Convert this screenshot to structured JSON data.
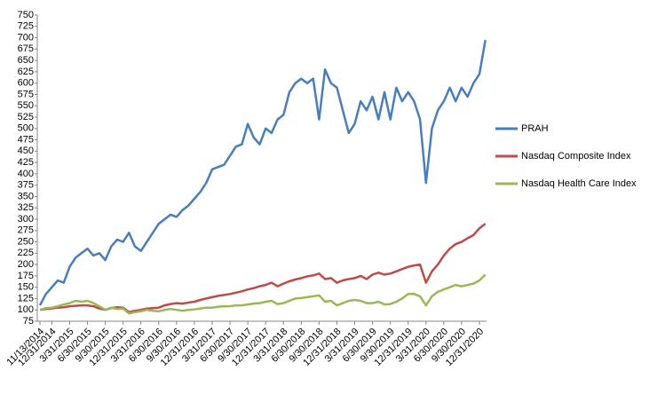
{
  "chart_data": {
    "type": "line",
    "categories": [
      "11/13/2014",
      null,
      "12/31/2014",
      null,
      null,
      "3/31/2015",
      null,
      null,
      "6/30/2015",
      null,
      null,
      "9/30/2015",
      null,
      null,
      "12/31/2015",
      null,
      null,
      "3/31/2016",
      null,
      null,
      "6/30/2016",
      null,
      null,
      "9/30/2016",
      null,
      null,
      "12/31/2016",
      null,
      null,
      "3/31/2017",
      null,
      null,
      "6/30/2017",
      null,
      null,
      "9/30/2017",
      null,
      null,
      "12/31/2017",
      null,
      null,
      "3/31/2018",
      null,
      null,
      "6/30/2018",
      null,
      null,
      "9/30/2018",
      null,
      null,
      "12/31/2018",
      null,
      null,
      "3/31/2019",
      null,
      null,
      "6/30/2019",
      null,
      null,
      "9/30/2019",
      null,
      null,
      "12/31/2019",
      null,
      null,
      "3/31/2020",
      null,
      null,
      "6/30/2020",
      null,
      null,
      "9/30/2020",
      null,
      null,
      "12/31/2020",
      null
    ],
    "series": [
      {
        "name": "PRAH",
        "color": "#4a7ebb",
        "values": [
          110,
          135,
          150,
          165,
          160,
          195,
          215,
          225,
          235,
          220,
          225,
          210,
          240,
          255,
          250,
          270,
          240,
          230,
          250,
          270,
          290,
          300,
          310,
          305,
          320,
          330,
          345,
          360,
          380,
          410,
          415,
          420,
          440,
          460,
          465,
          510,
          480,
          465,
          500,
          490,
          520,
          530,
          580,
          600,
          610,
          600,
          610,
          520,
          630,
          600,
          590,
          540,
          490,
          510,
          560,
          540,
          570,
          520,
          580,
          520,
          590,
          560,
          580,
          560,
          520,
          380,
          500,
          540,
          560,
          590,
          560,
          590,
          570,
          600,
          620,
          695
        ]
      },
      {
        "name": "Nasdaq Composite Index",
        "color": "#be4b48",
        "values": [
          100,
          102,
          103,
          105,
          106,
          108,
          109,
          110,
          110,
          108,
          103,
          100,
          104,
          106,
          105,
          95,
          98,
          100,
          103,
          104,
          105,
          110,
          113,
          115,
          114,
          116,
          118,
          122,
          125,
          128,
          131,
          133,
          135,
          138,
          141,
          145,
          148,
          152,
          155,
          160,
          152,
          158,
          163,
          167,
          170,
          174,
          176,
          180,
          168,
          170,
          160,
          165,
          168,
          170,
          175,
          168,
          178,
          182,
          178,
          180,
          185,
          190,
          195,
          198,
          200,
          160,
          185,
          200,
          220,
          235,
          245,
          250,
          258,
          265,
          280,
          290
        ]
      },
      {
        "name": "Nasdaq Health Care Index",
        "color": "#98b954",
        "values": [
          100,
          104,
          105,
          108,
          112,
          115,
          120,
          118,
          120,
          115,
          108,
          100,
          105,
          102,
          103,
          92,
          95,
          97,
          100,
          98,
          97,
          100,
          102,
          100,
          98,
          100,
          101,
          103,
          105,
          105,
          107,
          108,
          108,
          110,
          110,
          112,
          114,
          115,
          118,
          120,
          113,
          115,
          120,
          125,
          126,
          128,
          130,
          132,
          118,
          120,
          110,
          115,
          120,
          122,
          120,
          115,
          115,
          118,
          112,
          113,
          118,
          125,
          135,
          135,
          130,
          110,
          130,
          140,
          145,
          150,
          155,
          152,
          155,
          158,
          165,
          178
        ]
      }
    ],
    "ylim": [
      75,
      750
    ],
    "yticks": [
      75,
      100,
      125,
      150,
      175,
      200,
      225,
      250,
      275,
      300,
      325,
      350,
      375,
      400,
      425,
      450,
      475,
      500,
      525,
      550,
      575,
      600,
      625,
      650,
      675,
      700,
      725,
      750
    ],
    "grid": false
  }
}
